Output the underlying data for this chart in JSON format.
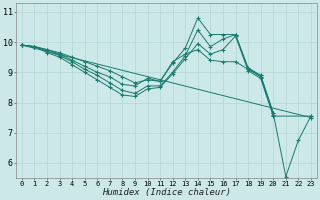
{
  "background_color": "#cce8e8",
  "grid_color": "#aed4d4",
  "line_color": "#1a7a6e",
  "xlabel": "Humidex (Indice chaleur)",
  "xlim": [
    -0.5,
    23.5
  ],
  "ylim": [
    5.5,
    11.3
  ],
  "yticks": [
    6,
    7,
    8,
    9,
    10,
    11
  ],
  "xticks": [
    0,
    1,
    2,
    3,
    4,
    5,
    6,
    7,
    8,
    9,
    10,
    11,
    12,
    13,
    14,
    15,
    16,
    17,
    18,
    19,
    20,
    21,
    22,
    23
  ],
  "lines": [
    {
      "x": [
        0,
        1,
        2,
        3,
        4,
        5,
        6,
        7,
        8,
        9,
        10,
        11,
        12,
        13,
        14,
        15,
        16,
        17,
        18,
        19,
        20,
        21,
        22,
        23
      ],
      "y": [
        9.9,
        9.85,
        9.75,
        9.65,
        9.5,
        9.35,
        9.2,
        9.05,
        8.85,
        8.65,
        8.75,
        8.7,
        9.35,
        9.6,
        9.75,
        9.4,
        9.35,
        9.35,
        9.1,
        8.9,
        7.65,
        5.55,
        6.75,
        7.55
      ]
    },
    {
      "x": [
        0,
        1,
        2,
        3,
        4,
        5,
        6,
        7,
        8,
        9,
        10,
        11,
        12,
        13,
        14,
        15,
        16,
        17,
        18,
        19,
        20
      ],
      "y": [
        9.9,
        9.85,
        9.75,
        9.6,
        9.4,
        9.2,
        9.0,
        8.85,
        8.6,
        8.55,
        8.8,
        8.7,
        9.3,
        9.8,
        10.8,
        10.25,
        10.25,
        10.25,
        9.15,
        8.9,
        7.65
      ]
    },
    {
      "x": [
        0,
        1,
        2,
        3,
        4,
        5,
        6,
        7,
        8,
        9,
        10,
        11,
        12,
        13,
        14,
        15,
        16,
        17,
        18,
        19,
        20
      ],
      "y": [
        9.9,
        9.85,
        9.7,
        9.55,
        9.35,
        9.1,
        8.9,
        8.65,
        8.4,
        8.3,
        8.55,
        8.55,
        9.0,
        9.55,
        10.4,
        9.85,
        10.1,
        10.25,
        9.1,
        8.85,
        7.6
      ]
    },
    {
      "x": [
        0,
        1,
        2,
        3,
        4,
        5,
        6,
        7,
        8,
        9,
        10,
        11,
        12,
        13,
        14,
        15,
        16,
        17,
        18,
        19,
        20,
        23
      ],
      "y": [
        9.9,
        9.85,
        9.65,
        9.5,
        9.25,
        9.0,
        8.75,
        8.5,
        8.25,
        8.2,
        8.45,
        8.5,
        8.95,
        9.45,
        9.95,
        9.6,
        9.75,
        10.2,
        9.05,
        8.8,
        7.55,
        7.55
      ]
    },
    {
      "x": [
        0,
        23
      ],
      "y": [
        9.9,
        7.5
      ]
    }
  ]
}
